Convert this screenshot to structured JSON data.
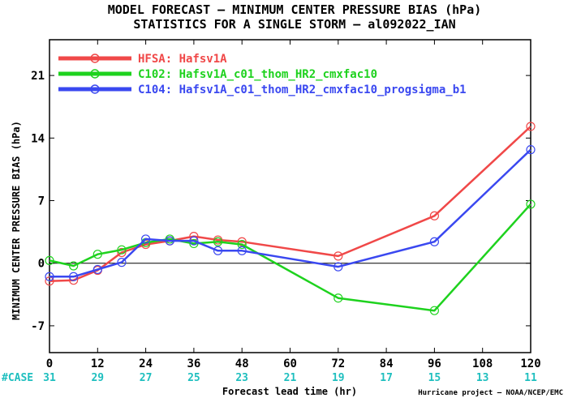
{
  "chart_data": {
    "type": "line",
    "title": "MODEL FORECAST — MINIMUM CENTER PRESSURE BIAS (hPa)",
    "subtitle": "STATISTICS FOR A SINGLE STORM — al092022_IAN",
    "xlabel": "Forecast lead time (hr)",
    "ylabel": "MINIMUM CENTER PRESSURE BIAS (hPa)",
    "xlim": [
      0,
      120
    ],
    "ylim": [
      -10,
      25
    ],
    "xticks": [
      0,
      12,
      24,
      36,
      48,
      60,
      72,
      84,
      96,
      108,
      120
    ],
    "yticks": [
      -7,
      0,
      7,
      14,
      21
    ],
    "zero_line": true,
    "grid": false,
    "legend_position": "top-left",
    "series": [
      {
        "name": "HFSA: Hafsv1A",
        "color": "#f04848",
        "x": [
          0,
          6,
          12,
          18,
          24,
          30,
          36,
          42,
          48,
          72,
          96,
          120
        ],
        "y": [
          -2.0,
          -1.9,
          -0.8,
          1.2,
          2.1,
          2.5,
          3.0,
          2.6,
          2.4,
          0.8,
          5.3,
          15.3
        ]
      },
      {
        "name": "C102: Hafsv1A_c01_thom_HR2_cmxfac10",
        "color": "#1ed21e",
        "x": [
          0,
          6,
          12,
          18,
          24,
          30,
          36,
          42,
          48,
          72,
          96,
          120
        ],
        "y": [
          0.3,
          -0.3,
          1.0,
          1.5,
          2.3,
          2.7,
          2.2,
          2.4,
          2.1,
          -3.9,
          -5.3,
          6.6
        ]
      },
      {
        "name": "C104: Hafsv1A_c01_thom_HR2_cmxfac10_progsigma_b1",
        "color": "#3a48f0",
        "x": [
          0,
          6,
          12,
          18,
          24,
          30,
          36,
          42,
          48,
          72,
          96,
          120
        ],
        "y": [
          -1.5,
          -1.5,
          -0.7,
          0.1,
          2.7,
          2.5,
          2.5,
          1.4,
          1.4,
          -0.4,
          2.4,
          12.7
        ]
      }
    ],
    "case_label": "#CASE",
    "case_counts": [
      {
        "x": 0,
        "n": "31"
      },
      {
        "x": 12,
        "n": "29"
      },
      {
        "x": 24,
        "n": "27"
      },
      {
        "x": 36,
        "n": "25"
      },
      {
        "x": 48,
        "n": "23"
      },
      {
        "x": 60,
        "n": "21"
      },
      {
        "x": 72,
        "n": "19"
      },
      {
        "x": 84,
        "n": "17"
      },
      {
        "x": 96,
        "n": "15"
      },
      {
        "x": 108,
        "n": "13"
      },
      {
        "x": 120,
        "n": "11"
      }
    ],
    "credit": "Hurricane project — NOAA/NCEP/EMC"
  }
}
